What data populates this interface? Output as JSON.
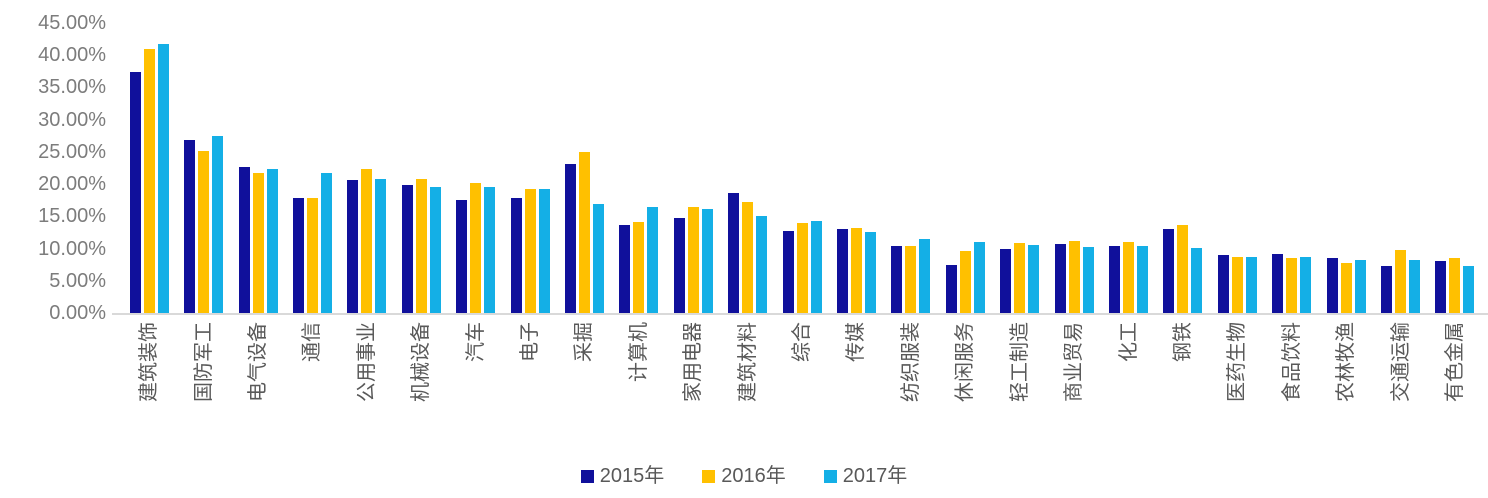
{
  "chart_data": {
    "type": "bar",
    "title": "",
    "categories": [
      "建筑装饰",
      "国防军工",
      "电气设备",
      "通信",
      "公用事业",
      "机械设备",
      "汽车",
      "电子",
      "采掘",
      "计算机",
      "家用电器",
      "建筑材料",
      "综合",
      "传媒",
      "纺织服装",
      "休闲服务",
      "轻工制造",
      "商业贸易",
      "化工",
      "钢铁",
      "医药生物",
      "食品饮料",
      "农林牧渔",
      "交通运输",
      "有色金属"
    ],
    "series": [
      {
        "name": "2015年",
        "color": "#10109B",
        "values": [
          37.4,
          26.8,
          22.6,
          17.9,
          20.7,
          19.8,
          17.6,
          17.9,
          23.2,
          13.6,
          14.7,
          18.7,
          12.7,
          13.0,
          10.4,
          7.5,
          10.0,
          10.7,
          10.4,
          13.1,
          9.0,
          9.2,
          8.6,
          7.3,
          8.0
        ]
      },
      {
        "name": "2016年",
        "color": "#FFC000",
        "values": [
          41.0,
          25.1,
          21.8,
          17.8,
          22.4,
          20.8,
          20.2,
          19.2,
          25.0,
          14.1,
          16.4,
          17.2,
          14.0,
          13.2,
          10.4,
          9.6,
          10.8,
          11.2,
          11.1,
          13.7,
          8.7,
          8.5,
          7.8,
          9.8,
          8.5
        ]
      },
      {
        "name": "2017年",
        "color": "#14AFE6",
        "values": [
          41.8,
          27.5,
          22.4,
          21.7,
          20.8,
          19.6,
          19.6,
          19.2,
          16.9,
          16.5,
          16.1,
          15.0,
          14.3,
          12.6,
          11.5,
          11.0,
          10.5,
          10.3,
          10.4,
          10.1,
          8.7,
          8.7,
          8.2,
          8.3,
          7.3
        ]
      }
    ],
    "y_axis": {
      "min": 0,
      "max": 45,
      "tick_step": 5,
      "ticks": [
        "45.00%",
        "40.00%",
        "35.00%",
        "30.00%",
        "25.00%",
        "20.00%",
        "15.00%",
        "10.00%",
        "5.00%",
        "0.00%"
      ]
    },
    "xlabel": "",
    "ylabel": "",
    "grid": false,
    "legend_position": "bottom"
  },
  "colors": {
    "background": "#FFFFFF",
    "axis_line": "#D9D9D9",
    "y_tick_text": "#7C7C7C",
    "x_tick_text": "#595959",
    "legend_text": "#595959"
  }
}
